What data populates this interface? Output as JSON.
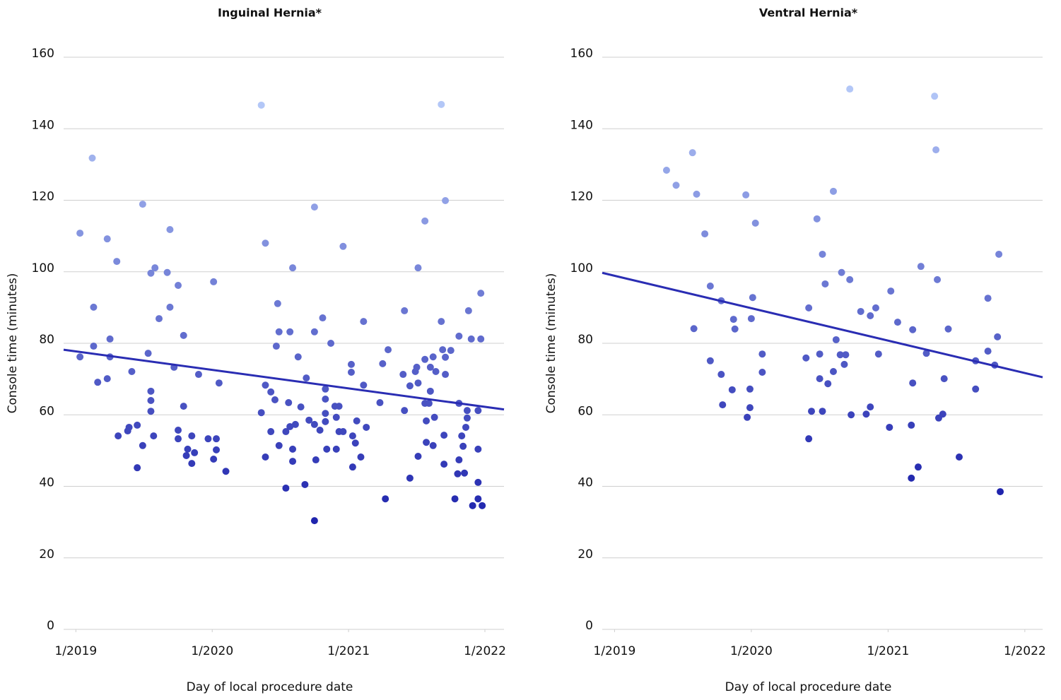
{
  "chart_data": [
    {
      "type": "scatter",
      "title": "Inguinal Hernia*",
      "x_label": "Day of local procedure date",
      "y_label": "Console time (minutes)",
      "xlim": [
        2018.91,
        2022.14
      ],
      "ylim": [
        0,
        160
      ],
      "xticks": [
        {
          "value": 2019,
          "label": "1/2019"
        },
        {
          "value": 2020,
          "label": "1/2020"
        },
        {
          "value": 2021,
          "label": "1/2021"
        },
        {
          "value": 2022,
          "label": "1/2022"
        }
      ],
      "yticks": [
        0,
        20,
        40,
        60,
        80,
        100,
        120,
        140,
        160
      ],
      "grid": true,
      "color_range": [
        "#1f24ad",
        "#b3c7f7"
      ],
      "trend_color": "#2a2db3",
      "x": [
        2019.03,
        2019.12,
        2019.03,
        2019.13,
        2019.13,
        2019.16,
        2019.23,
        2019.23,
        2019.25,
        2019.25,
        2019.3,
        2019.31,
        2019.38,
        2019.39,
        2019.41,
        2019.45,
        2019.45,
        2019.49,
        2019.49,
        2019.53,
        2019.55,
        2019.55,
        2019.55,
        2019.55,
        2019.58,
        2019.57,
        2019.61,
        2019.67,
        2019.69,
        2019.69,
        2019.72,
        2019.75,
        2019.75,
        2019.75,
        2019.79,
        2019.79,
        2019.82,
        2019.81,
        2019.85,
        2019.85,
        2019.87,
        2019.9,
        2019.97,
        2020.01,
        2020.01,
        2020.03,
        2020.03,
        2020.05,
        2020.1,
        2020.36,
        2020.36,
        2020.39,
        2020.39,
        2020.39,
        2020.43,
        2020.43,
        2020.46,
        2020.47,
        2020.48,
        2020.49,
        2020.49,
        2020.54,
        2020.54,
        2020.56,
        2020.57,
        2020.57,
        2020.59,
        2020.59,
        2020.59,
        2020.61,
        2020.63,
        2020.65,
        2020.68,
        2020.69,
        2020.71,
        2020.75,
        2020.75,
        2020.75,
        2020.75,
        2020.76,
        2020.79,
        2020.81,
        2020.83,
        2020.83,
        2020.83,
        2020.83,
        2020.84,
        2020.87,
        2020.9,
        2020.91,
        2020.91,
        2020.93,
        2020.93,
        2020.96,
        2020.96,
        2021.02,
        2021.02,
        2021.03,
        2021.03,
        2021.05,
        2021.06,
        2021.09,
        2021.11,
        2021.11,
        2021.13,
        2021.23,
        2021.25,
        2021.27,
        2021.29,
        2021.41,
        2021.4,
        2021.41,
        2021.45,
        2021.45,
        2021.49,
        2021.5,
        2021.51,
        2021.51,
        2021.51,
        2021.56,
        2021.56,
        2021.56,
        2021.57,
        2021.57,
        2021.59,
        2021.6,
        2021.6,
        2021.62,
        2021.62,
        2021.63,
        2021.64,
        2021.68,
        2021.68,
        2021.69,
        2021.7,
        2021.7,
        2021.71,
        2021.71,
        2021.71,
        2021.75,
        2021.78,
        2021.81,
        2021.81,
        2021.81,
        2021.8,
        2021.83,
        2021.84,
        2021.85,
        2021.86,
        2021.87,
        2021.87,
        2021.88,
        2021.9,
        2021.91,
        2021.95,
        2021.95,
        2021.95,
        2021.95,
        2021.97,
        2021.97,
        2021.98
      ],
      "values": [
        110.8,
        131.8,
        76.2,
        79.2,
        90.1,
        69.1,
        109.2,
        70.1,
        81.2,
        76.2,
        102.9,
        54.1,
        55.5,
        56.5,
        72.1,
        57.1,
        45.2,
        118.9,
        51.4,
        77.2,
        99.6,
        66.6,
        64.0,
        61.0,
        101.1,
        54.1,
        86.9,
        99.8,
        90.1,
        111.8,
        73.3,
        96.2,
        55.7,
        53.3,
        82.2,
        62.4,
        50.4,
        48.6,
        54.1,
        46.4,
        49.4,
        71.3,
        53.3,
        97.2,
        47.6,
        50.2,
        53.3,
        68.9,
        44.2,
        146.6,
        60.6,
        108.0,
        68.3,
        48.2,
        66.4,
        55.3,
        64.2,
        79.2,
        91.1,
        83.2,
        51.4,
        39.5,
        55.3,
        63.4,
        83.2,
        56.7,
        101.1,
        50.4,
        47.0,
        57.3,
        76.2,
        62.2,
        40.5,
        70.3,
        58.5,
        118.1,
        83.2,
        57.3,
        30.4,
        47.4,
        55.7,
        87.1,
        67.2,
        64.4,
        60.4,
        58.1,
        50.4,
        80.0,
        62.4,
        59.3,
        50.4,
        62.4,
        55.3,
        107.1,
        55.3,
        74.1,
        71.9,
        45.4,
        54.1,
        52.1,
        58.3,
        48.2,
        86.1,
        68.3,
        56.5,
        63.4,
        74.3,
        36.5,
        78.2,
        89.1,
        71.3,
        61.2,
        68.1,
        42.3,
        72.1,
        73.3,
        101.1,
        68.9,
        48.4,
        114.2,
        75.5,
        63.2,
        52.3,
        58.3,
        63.2,
        73.3,
        66.6,
        76.2,
        51.4,
        59.3,
        72.1,
        146.8,
        86.1,
        78.2,
        46.2,
        54.3,
        119.9,
        76.1,
        71.3,
        78.0,
        36.5,
        63.2,
        82.0,
        47.4,
        43.5,
        54.1,
        51.2,
        43.7,
        56.5,
        59.1,
        61.2,
        89.1,
        81.2,
        34.6,
        61.2,
        50.4,
        36.5,
        41.1,
        94.0,
        81.2,
        34.6
      ],
      "trend": {
        "x": [
          2018.91,
          2022.14
        ],
        "values": [
          78.2,
          61.5
        ]
      }
    },
    {
      "type": "scatter",
      "title": "Ventral Hernia*",
      "x_label": "Day of local procedure date",
      "y_label": "Console time (minutes)",
      "xlim": [
        2018.91,
        2022.13
      ],
      "ylim": [
        0,
        160
      ],
      "xticks": [
        {
          "value": 2019,
          "label": "1/2019"
        },
        {
          "value": 2020,
          "label": "1/2020"
        },
        {
          "value": 2021,
          "label": "1/2021"
        },
        {
          "value": 2022,
          "label": "1/2022"
        }
      ],
      "yticks": [
        0,
        20,
        40,
        60,
        80,
        100,
        120,
        140,
        160
      ],
      "grid": true,
      "color_range": [
        "#1f24ad",
        "#b3c7f7"
      ],
      "trend_color": "#2a2db3",
      "x": [
        2019.38,
        2019.45,
        2019.57,
        2019.58,
        2019.6,
        2019.66,
        2019.7,
        2019.7,
        2019.78,
        2019.78,
        2019.79,
        2019.86,
        2019.87,
        2019.88,
        2019.96,
        2019.97,
        2019.99,
        2019.99,
        2020.0,
        2020.01,
        2020.03,
        2020.08,
        2020.08,
        2020.4,
        2020.42,
        2020.42,
        2020.44,
        2020.48,
        2020.5,
        2020.5,
        2020.52,
        2020.52,
        2020.54,
        2020.56,
        2020.6,
        2020.6,
        2020.62,
        2020.65,
        2020.66,
        2020.68,
        2020.69,
        2020.72,
        2020.72,
        2020.73,
        2020.8,
        2020.84,
        2020.87,
        2020.87,
        2020.91,
        2020.93,
        2021.01,
        2021.02,
        2021.07,
        2021.17,
        2021.17,
        2021.18,
        2021.18,
        2021.22,
        2021.24,
        2021.28,
        2021.34,
        2021.35,
        2021.36,
        2021.37,
        2021.4,
        2021.41,
        2021.44,
        2021.52,
        2021.64,
        2021.64,
        2021.73,
        2021.73,
        2021.78,
        2021.8,
        2021.81,
        2021.82
      ],
      "values": [
        128.4,
        124.2,
        133.3,
        84.1,
        121.7,
        110.6,
        96.0,
        75.1,
        91.9,
        71.3,
        62.8,
        67.0,
        86.7,
        84.0,
        121.5,
        59.3,
        62.0,
        67.2,
        86.9,
        92.8,
        113.6,
        77.0,
        71.9,
        75.9,
        89.9,
        53.3,
        61.0,
        114.8,
        77.0,
        70.1,
        104.9,
        61.0,
        96.6,
        68.7,
        72.1,
        122.5,
        81.0,
        76.8,
        99.8,
        74.1,
        76.8,
        151.1,
        97.8,
        60.0,
        88.9,
        60.2,
        62.2,
        87.7,
        89.9,
        77.0,
        56.5,
        94.6,
        85.9,
        42.3,
        57.1,
        68.9,
        83.8,
        45.4,
        101.5,
        77.2,
        149.1,
        134.1,
        97.8,
        59.1,
        60.2,
        70.1,
        84.0,
        48.2,
        75.1,
        67.2,
        92.6,
        77.8,
        73.9,
        81.8,
        104.9,
        38.5
      ],
      "trend": {
        "x": [
          2018.91,
          2022.13
        ],
        "values": [
          99.7,
          70.5
        ]
      }
    }
  ]
}
